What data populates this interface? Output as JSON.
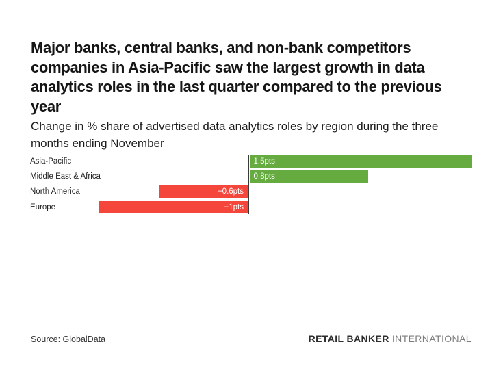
{
  "page": {
    "background": "#ffffff"
  },
  "header": {
    "title": "Major banks, central banks, and non-bank competitors companies in Asia-Pacific saw the largest growth in data analytics roles in the last quarter compared to the previous year",
    "subtitle": "Change in % share of advertised data analytics roles by region during the three months ending November"
  },
  "chart_data": {
    "type": "bar",
    "orientation": "horizontal",
    "title": "Change in % share of advertised data analytics roles by region during the three months ending November",
    "unit": "pts",
    "categories": [
      "Asia-Pacific",
      "Middle East & Africa",
      "North America",
      "Europe"
    ],
    "values": [
      1.5,
      0.8,
      -0.6,
      -1
    ],
    "value_labels": [
      "1.5pts",
      "0.8pts",
      "−0.6pts",
      "−1pts"
    ],
    "xlim": [
      -1,
      1.5
    ],
    "grid": false,
    "legend": false,
    "positive_color": "#66ab40",
    "negative_color": "#f4463a",
    "axis_line_color": "#3a3a3a"
  },
  "footer": {
    "source": "Source: GlobalData",
    "brand_bold": "RETAIL BANKER",
    "brand_light": "INTERNATIONAL"
  }
}
